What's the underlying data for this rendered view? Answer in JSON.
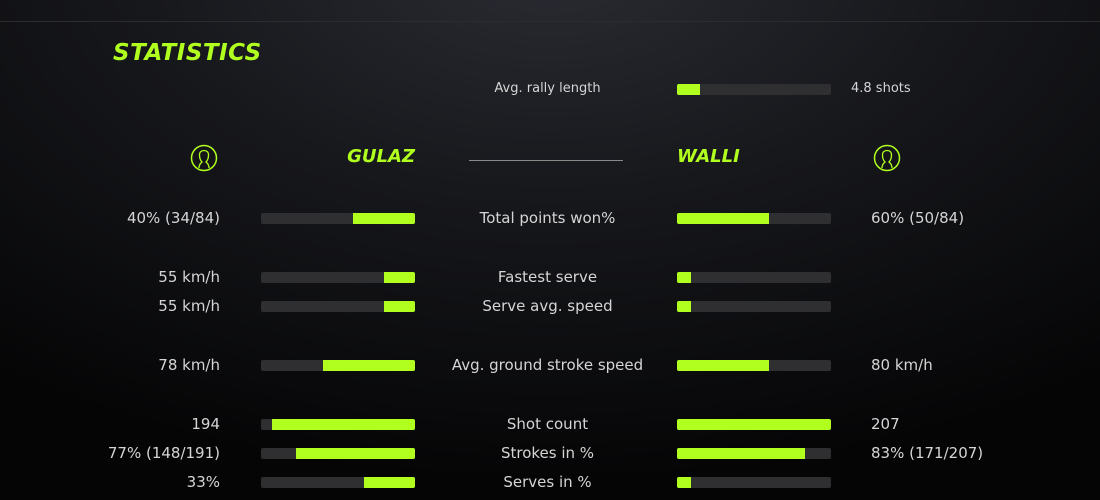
{
  "title": "STATISTICS",
  "accent_color": "#b0ff1e",
  "rally": {
    "label": "Avg. rally length",
    "value": "4.8 shots",
    "fill_pct": 15
  },
  "players": {
    "left": {
      "name": "GULAZ",
      "icon": "user-circle-icon"
    },
    "right": {
      "name": "WALLI",
      "icon": "user-circle-icon"
    }
  },
  "stats": [
    {
      "label": "Total points won%",
      "left": "40% (34/84)",
      "right": "60% (50/84)",
      "left_pct": 40,
      "right_pct": 60
    },
    {
      "label": "Fastest serve",
      "left": "55 km/h",
      "right": "",
      "left_pct": 20,
      "right_pct": 9
    },
    {
      "label": "Serve avg. speed",
      "left": "55 km/h",
      "right": "",
      "left_pct": 20,
      "right_pct": 9
    },
    {
      "label": "Avg. ground stroke speed",
      "left": "78 km/h",
      "right": "80 km/h",
      "left_pct": 60,
      "right_pct": 60
    },
    {
      "label": "Shot count",
      "left": "194",
      "right": "207",
      "left_pct": 93,
      "right_pct": 100
    },
    {
      "label": "Strokes in %",
      "left": "77% (148/191)",
      "right": "83% (171/207)",
      "left_pct": 77,
      "right_pct": 83
    },
    {
      "label": "Serves in %",
      "left": "33%",
      "right": "",
      "left_pct": 33,
      "right_pct": 9
    }
  ]
}
